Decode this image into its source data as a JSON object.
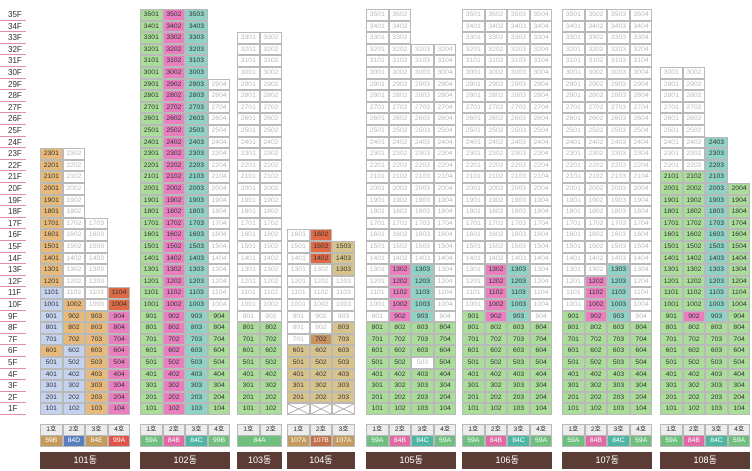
{
  "floors": [
    "35F",
    "34F",
    "33F",
    "32F",
    "31F",
    "30F",
    "29F",
    "28F",
    "27F",
    "26F",
    "25F",
    "24F",
    "23F",
    "22F",
    "21F",
    "20F",
    "19F",
    "18F",
    "17F",
    "16F",
    "15F",
    "14F",
    "13F",
    "12F",
    "11F",
    "10F",
    "9F",
    "8F",
    "7F",
    "6F",
    "5F",
    "4F",
    "3F",
    "2F",
    "1F"
  ],
  "colors": {
    "empty": "#ffffff",
    "orange": "#e7b97a",
    "pink": "#e97fbf",
    "red": "#df6a45",
    "green": "#a9dd99",
    "teal": "#8fd3c6",
    "blue": "#c5d3ee",
    "tan": "#d8c48b",
    "brown": "#c8925c",
    "label_bg": "#5b3d35",
    "floor_line": "#e58bb4"
  },
  "buildings": [
    {
      "name": "101동",
      "ho": [
        "1호",
        "2호",
        "3호",
        "4호"
      ],
      "types": [
        {
          "t": "59B",
          "c": "#c49a5d"
        },
        {
          "t": "84D",
          "c": "#5a7fc0"
        },
        {
          "t": "84E",
          "c": "#c49a5d"
        },
        {
          "t": "99A",
          "c": "#e0554a"
        }
      ],
      "cols": [
        {
          "top": 23,
          "base": "o",
          "ranges": [
            {
              "f": 7,
              "t": 11,
              "s": "b"
            },
            {
              "f": 6,
              "t": 6,
              "s": "o"
            },
            {
              "f": 1,
              "t": 5,
              "s": "b"
            }
          ]
        },
        {
          "top": 23,
          "base": "e",
          "ranges": [
            {
              "f": 7,
              "t": 10,
              "s": "o"
            },
            {
              "f": 1,
              "t": 6,
              "s": "b"
            }
          ]
        },
        {
          "top": 17,
          "base": "e",
          "ranges": [
            {
              "f": 1,
              "t": 9,
              "s": "o"
            }
          ]
        },
        {
          "top": 11,
          "base": "r",
          "ranges": [
            {
              "f": 1,
              "t": 9,
              "s": "p"
            }
          ]
        }
      ]
    },
    {
      "name": "102동",
      "ho": [
        "1호",
        "2호",
        "3호",
        "4호"
      ],
      "types": [
        {
          "t": "59A",
          "c": "#6fbf7f"
        },
        {
          "t": "84B",
          "c": "#e06aa6"
        },
        {
          "t": "84C",
          "c": "#4fb6a3"
        },
        {
          "t": "99B",
          "c": "#6fbf7f"
        }
      ],
      "cols": [
        {
          "top": 35,
          "base": "g",
          "ranges": []
        },
        {
          "top": 35,
          "base": "p",
          "ranges": []
        },
        {
          "top": 35,
          "base": "t",
          "ranges": []
        },
        {
          "top": 29,
          "base": "e",
          "ranges": [
            {
              "f": 1,
              "t": 9,
              "s": "g"
            }
          ]
        }
      ]
    },
    {
      "name": "103동",
      "ho": [
        "1호",
        "2호"
      ],
      "types": [
        {
          "t": "84A",
          "c": "#6fbf7f",
          "span": 2
        }
      ],
      "cols": [
        {
          "top": 33,
          "base": "e",
          "ranges": [
            {
              "f": 1,
              "t": 8,
              "s": "g"
            }
          ]
        },
        {
          "top": 33,
          "base": "e",
          "ranges": [
            {
              "f": 1,
              "t": 8,
              "s": "g"
            }
          ]
        }
      ]
    },
    {
      "name": "104동",
      "ho": [
        "1호",
        "2호",
        "3호"
      ],
      "types": [
        {
          "t": "107A",
          "c": "#c49a5d"
        },
        {
          "t": "107B",
          "c": "#c1704a"
        },
        {
          "t": "107A",
          "c": "#c49a5d"
        }
      ],
      "cols": [
        {
          "top": 16,
          "base": "e",
          "ranges": [
            {
              "f": 2,
              "t": 6,
              "s": "y"
            },
            {
              "f": 1,
              "t": 1,
              "s": "x"
            }
          ]
        },
        {
          "top": 16,
          "base": "e",
          "ranges": [
            {
              "f": 14,
              "t": 16,
              "s": "r"
            },
            {
              "f": 7,
              "t": 7,
              "s": "br"
            },
            {
              "f": 2,
              "t": 6,
              "s": "y"
            },
            {
              "f": 1,
              "t": 1,
              "s": "x"
            }
          ]
        },
        {
          "top": 15,
          "base": "y",
          "ranges": [
            {
              "f": 13,
              "t": 13,
              "s": "y"
            },
            {
              "f": 9,
              "t": 12,
              "s": "e"
            },
            {
              "f": 1,
              "t": 1,
              "s": "x"
            }
          ]
        }
      ]
    },
    {
      "name": "105동",
      "ho": [
        "1호",
        "2호",
        "3호",
        "4호"
      ],
      "types": [
        {
          "t": "59A",
          "c": "#6fbf7f"
        },
        {
          "t": "84B",
          "c": "#e06aa6"
        },
        {
          "t": "84C",
          "c": "#4fb6a3"
        },
        {
          "t": "59A",
          "c": "#6fbf7f"
        }
      ],
      "cols": [
        {
          "top": 35,
          "base": "e",
          "ranges": [
            {
              "f": 1,
              "t": 8,
              "s": "g"
            }
          ]
        },
        {
          "top": 35,
          "base": "e",
          "ranges": [
            {
              "f": 9,
              "t": 13,
              "s": "p"
            },
            {
              "f": 1,
              "t": 8,
              "s": "g"
            }
          ]
        },
        {
          "top": 32,
          "base": "e",
          "ranges": [
            {
              "f": 9,
              "t": 13,
              "s": "t"
            },
            {
              "f": 6,
              "t": 8,
              "s": "g"
            },
            {
              "f": 5,
              "t": 5,
              "s": "e"
            },
            {
              "f": 1,
              "t": 4,
              "s": "g"
            }
          ]
        },
        {
          "top": 32,
          "base": "e",
          "ranges": [
            {
              "f": 1,
              "t": 8,
              "s": "g"
            }
          ]
        }
      ]
    },
    {
      "name": "106동",
      "ho": [
        "1호",
        "2호",
        "3호",
        "4호"
      ],
      "types": [
        {
          "t": "59A",
          "c": "#6fbf7f"
        },
        {
          "t": "84B",
          "c": "#e06aa6"
        },
        {
          "t": "84C",
          "c": "#4fb6a3"
        },
        {
          "t": "59A",
          "c": "#6fbf7f"
        }
      ],
      "cols": [
        {
          "top": 35,
          "base": "e",
          "ranges": [
            {
              "f": 1,
              "t": 9,
              "s": "g"
            }
          ]
        },
        {
          "top": 35,
          "base": "e",
          "ranges": [
            {
              "f": 9,
              "t": 13,
              "s": "p"
            },
            {
              "f": 1,
              "t": 8,
              "s": "g"
            }
          ]
        },
        {
          "top": 35,
          "base": "e",
          "ranges": [
            {
              "f": 9,
              "t": 13,
              "s": "t"
            },
            {
              "f": 1,
              "t": 8,
              "s": "g"
            }
          ]
        },
        {
          "top": 35,
          "base": "e",
          "ranges": [
            {
              "f": 1,
              "t": 8,
              "s": "g"
            }
          ]
        }
      ]
    },
    {
      "name": "107동",
      "ho": [
        "1호",
        "2호",
        "3호",
        "4호"
      ],
      "types": [
        {
          "t": "59A",
          "c": "#6fbf7f"
        },
        {
          "t": "84B",
          "c": "#e06aa6"
        },
        {
          "t": "84C",
          "c": "#4fb6a3"
        },
        {
          "t": "59A",
          "c": "#6fbf7f"
        }
      ],
      "cols": [
        {
          "top": 35,
          "base": "e",
          "ranges": [
            {
              "f": 1,
              "t": 9,
              "s": "g"
            }
          ]
        },
        {
          "top": 35,
          "base": "e",
          "ranges": [
            {
              "f": 9,
              "t": 12,
              "s": "p"
            },
            {
              "f": 1,
              "t": 8,
              "s": "g"
            }
          ]
        },
        {
          "top": 35,
          "base": "e",
          "ranges": [
            {
              "f": 9,
              "t": 13,
              "s": "t"
            },
            {
              "f": 1,
              "t": 8,
              "s": "g"
            }
          ]
        },
        {
          "top": 35,
          "base": "e",
          "ranges": [
            {
              "f": 1,
              "t": 8,
              "s": "g"
            }
          ]
        }
      ]
    },
    {
      "name": "108동",
      "ho": [
        "1호",
        "2호",
        "3호",
        "4호"
      ],
      "types": [
        {
          "t": "59A",
          "c": "#6fbf7f"
        },
        {
          "t": "84B",
          "c": "#e06aa6"
        },
        {
          "t": "84C",
          "c": "#4fb6a3"
        },
        {
          "t": "59A",
          "c": "#6fbf7f"
        }
      ],
      "cols": [
        {
          "top": 30,
          "base": "e",
          "ranges": [
            {
              "f": 1,
              "t": 21,
              "s": "g"
            }
          ]
        },
        {
          "top": 30,
          "base": "e",
          "ranges": [
            {
              "f": 9,
              "t": 14,
              "s": "p"
            },
            {
              "f": 1,
              "t": 8,
              "s": "g"
            },
            {
              "f": 10,
              "t": 21,
              "s": "g"
            }
          ]
        },
        {
          "top": 24,
          "base": "t",
          "ranges": [
            {
              "f": 1,
              "t": 8,
              "s": "g"
            }
          ]
        },
        {
          "top": 20,
          "base": "g",
          "ranges": []
        }
      ]
    }
  ]
}
